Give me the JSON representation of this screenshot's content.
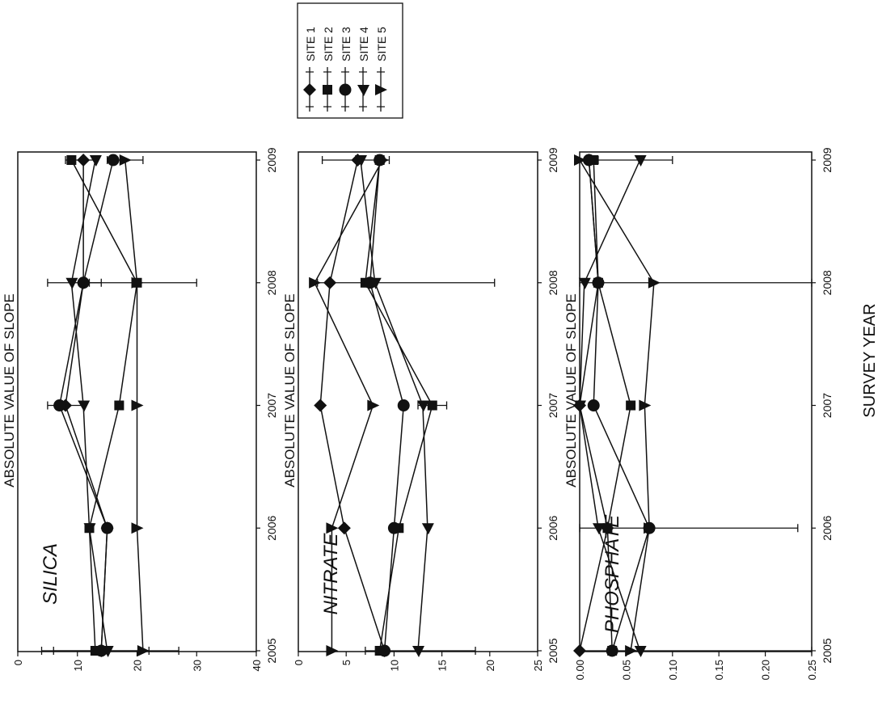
{
  "chart_data": {
    "type": "line",
    "xlabel": "SURVEY YEAR",
    "legend": {
      "placement": "top-right",
      "entries": [
        "SITE 1",
        "SITE 2",
        "SITE 3",
        "SITE 4",
        "SITE 5"
      ],
      "markers": [
        "diamond",
        "square",
        "circle",
        "triangle-up",
        "triangle-right"
      ]
    },
    "x": [
      2005,
      2006,
      2007,
      2008,
      2009
    ],
    "xlim": [
      2005,
      2009
    ],
    "panels": [
      {
        "title": "SILICA",
        "ylabel": "ABSOLUTE VALUE OF SLOPE",
        "ylim": [
          0,
          40
        ],
        "yticks": [
          "0",
          "10",
          "20",
          "30",
          "40"
        ],
        "series": [
          {
            "name": "SITE 1",
            "values": [
              14,
              15,
              8,
              11,
              11
            ]
          },
          {
            "name": "SITE 2",
            "values": [
              13,
              12,
              17,
              20,
              9
            ]
          },
          {
            "name": "SITE 3",
            "values": [
              14,
              15,
              7,
              11,
              16
            ]
          },
          {
            "name": "SITE 4",
            "values": [
              15,
              12,
              11,
              9,
              13
            ]
          },
          {
            "name": "SITE 5",
            "values": [
              21,
              20,
              20,
              20,
              18
            ]
          }
        ],
        "errors": [
          {
            "name": "SITE 5",
            "x": 2005,
            "low": 4,
            "high": 27
          },
          {
            "name": "SITE 4",
            "x": 2005,
            "low": 6,
            "high": 22
          },
          {
            "name": "SITE 5",
            "x": 2008,
            "low": 12,
            "high": 30
          },
          {
            "name": "SITE 4",
            "x": 2008,
            "low": 5,
            "high": 14
          },
          {
            "name": "SITE 5",
            "x": 2009,
            "low": 15,
            "high": 21
          },
          {
            "name": "SITE 2",
            "x": 2009,
            "low": 8,
            "high": 13
          },
          {
            "name": "SITE 1",
            "x": 2007,
            "low": 5,
            "high": 11
          }
        ]
      },
      {
        "title": "NITRATE",
        "ylabel": "ABSOLUTE VALUE OF SLOPE",
        "ylim": [
          0,
          25
        ],
        "yticks": [
          "0",
          "5",
          "10",
          "15",
          "20",
          "25"
        ],
        "series": [
          {
            "name": "SITE 1",
            "values": [
              9,
              4.8,
              2.3,
              3.3,
              6.2
            ]
          },
          {
            "name": "SITE 2",
            "values": [
              8.5,
              10.5,
              14,
              7,
              8.5
            ]
          },
          {
            "name": "SITE 3",
            "values": [
              9,
              10,
              11,
              7.5,
              8.5
            ]
          },
          {
            "name": "SITE 4",
            "values": [
              12.5,
              13.5,
              13,
              8,
              6.5
            ]
          },
          {
            "name": "SITE 5",
            "values": [
              3.5,
              3.5,
              7.8,
              1.7,
              8.8
            ]
          }
        ],
        "errors": [
          {
            "name": "SITE 4",
            "x": 2005,
            "low": 7,
            "high": 18.5
          },
          {
            "name": "SITE 4",
            "x": 2008,
            "low": 2,
            "high": 20.5
          },
          {
            "name": "SITE 1",
            "x": 2009,
            "low": 2.5,
            "high": 9.5
          },
          {
            "name": "SITE 2",
            "x": 2007,
            "low": 12.5,
            "high": 15.5
          }
        ]
      },
      {
        "title": "PHOSPHATE",
        "ylabel": "ABSOLUTE VALUE OF SLOPE",
        "ylim": [
          0,
          0.25
        ],
        "yticks": [
          "0.00",
          "0.05",
          "0.10",
          "0.15",
          "0.20",
          "0.25"
        ],
        "series": [
          {
            "name": "SITE 1",
            "values": [
              0.0,
              0.03,
              0.0,
              0.02,
              0.01
            ]
          },
          {
            "name": "SITE 2",
            "values": [
              0.035,
              0.03,
              0.055,
              0.02,
              0.015
            ]
          },
          {
            "name": "SITE 3",
            "values": [
              0.035,
              0.075,
              0.015,
              0.02,
              0.01
            ]
          },
          {
            "name": "SITE 4",
            "values": [
              0.065,
              0.02,
              0.0,
              0.005,
              0.065
            ]
          },
          {
            "name": "SITE 5",
            "values": [
              0.055,
              0.075,
              0.07,
              0.08,
              0.0
            ]
          }
        ],
        "errors": [
          {
            "name": "SITE 5",
            "x": 2005,
            "low": 0.0,
            "high": 0.25
          },
          {
            "name": "SITE 5",
            "x": 2006,
            "low": 0.0,
            "high": 0.235
          },
          {
            "name": "SITE 5",
            "x": 2008,
            "low": 0.0,
            "high": 0.25
          },
          {
            "name": "SITE 4",
            "x": 2009,
            "low": 0.02,
            "high": 0.1
          }
        ]
      }
    ]
  }
}
